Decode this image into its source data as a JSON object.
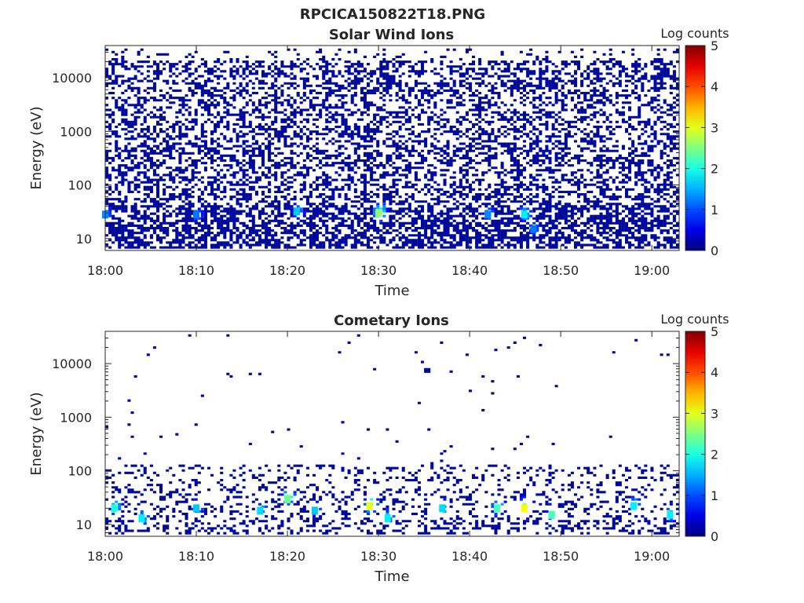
{
  "figure_title": "RPCICA150822T18.PNG",
  "chart_data": [
    {
      "type": "heatmap",
      "title": "Solar Wind Ions",
      "xlabel": "Time",
      "ylabel": "Energy (eV)",
      "x_range": [
        "18:00",
        "19:03"
      ],
      "x_ticks": [
        "18:00",
        "18:10",
        "18:20",
        "18:30",
        "18:40",
        "18:50",
        "19:00"
      ],
      "y_scale": "log",
      "y_range": [
        6,
        40000
      ],
      "y_ticks": [
        10,
        100,
        1000,
        10000
      ],
      "y_tick_labels": [
        "10",
        "100",
        "1000",
        "10000"
      ],
      "colorbar": {
        "label": "Log counts",
        "range": [
          0,
          5
        ],
        "ticks": [
          "0",
          "1",
          "2",
          "3",
          "4",
          "5"
        ],
        "colormap": "jet"
      },
      "background": "#ffffff",
      "hotspots": [
        {
          "time": "18:00",
          "energy": 28,
          "value": 1.3
        },
        {
          "time": "18:10",
          "energy": 28,
          "value": 1.2
        },
        {
          "time": "18:21",
          "energy": 32,
          "value": 1.6
        },
        {
          "time": "18:30",
          "energy": 30,
          "value": 2.6
        },
        {
          "time": "18:42",
          "energy": 28,
          "value": 1.3
        },
        {
          "time": "18:46",
          "energy": 28,
          "value": 1.8
        },
        {
          "time": "18:47",
          "energy": 15,
          "value": 1.2
        }
      ]
    },
    {
      "type": "heatmap",
      "title": "Cometary Ions",
      "xlabel": "Time",
      "ylabel": "Energy (eV)",
      "x_range": [
        "18:00",
        "19:03"
      ],
      "x_ticks": [
        "18:00",
        "18:10",
        "18:20",
        "18:30",
        "18:40",
        "18:50",
        "19:00"
      ],
      "y_scale": "log",
      "y_range": [
        6,
        40000
      ],
      "y_ticks": [
        10,
        100,
        1000,
        10000
      ],
      "y_tick_labels": [
        "10",
        "100",
        "1000",
        "10000"
      ],
      "colorbar": {
        "label": "Log counts",
        "range": [
          0,
          5
        ],
        "ticks": [
          "0",
          "1",
          "2",
          "3",
          "4",
          "5"
        ],
        "colormap": "jet"
      },
      "background": "#ffffff",
      "hotspots": [
        {
          "time": "18:01",
          "energy": 20,
          "value": 2.0
        },
        {
          "time": "18:04",
          "energy": 13,
          "value": 1.8
        },
        {
          "time": "18:10",
          "energy": 20,
          "value": 1.6
        },
        {
          "time": "18:17",
          "energy": 18,
          "value": 1.7
        },
        {
          "time": "18:20",
          "energy": 30,
          "value": 2.4
        },
        {
          "time": "18:23",
          "energy": 18,
          "value": 1.6
        },
        {
          "time": "18:29",
          "energy": 22,
          "value": 3.0
        },
        {
          "time": "18:31",
          "energy": 13,
          "value": 1.8
        },
        {
          "time": "18:37",
          "energy": 20,
          "value": 1.7
        },
        {
          "time": "18:43",
          "energy": 20,
          "value": 2.2
        },
        {
          "time": "18:46",
          "energy": 20,
          "value": 3.1
        },
        {
          "time": "18:49",
          "energy": 15,
          "value": 2.2
        },
        {
          "time": "18:58",
          "energy": 22,
          "value": 1.8
        },
        {
          "time": "19:02",
          "energy": 15,
          "value": 1.8
        }
      ]
    }
  ]
}
